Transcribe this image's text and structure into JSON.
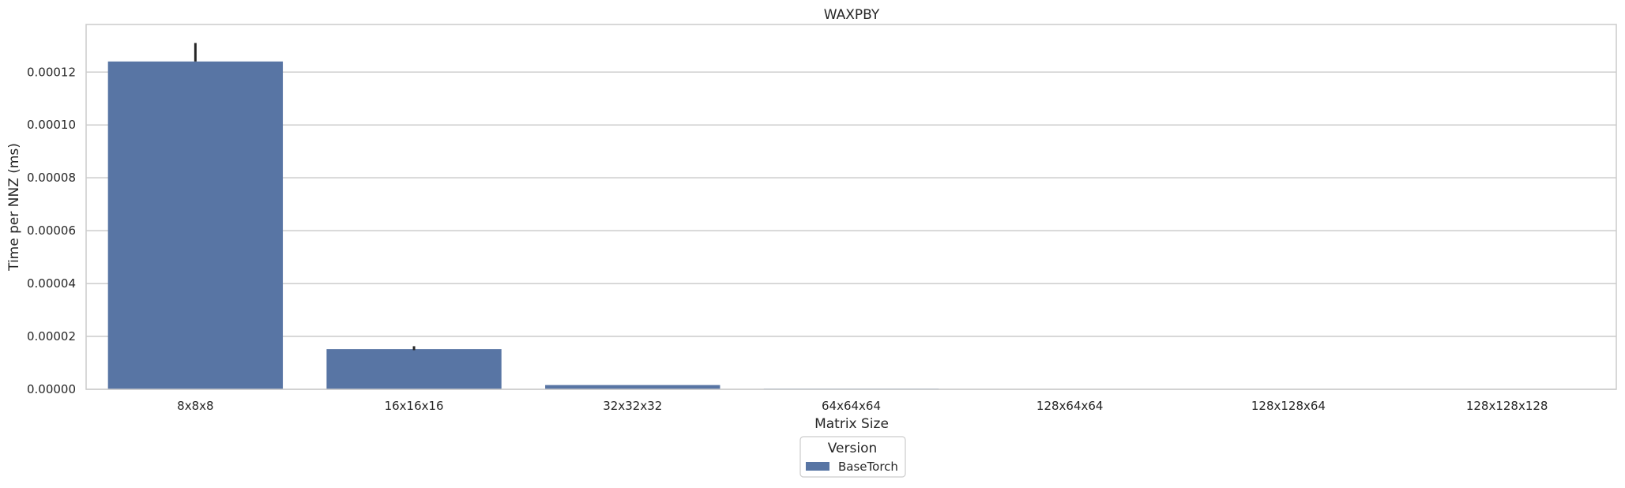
{
  "chart_data": {
    "type": "bar",
    "title": "WAXPBY",
    "xlabel": "Matrix Size",
    "ylabel": "Time per NNZ (ms)",
    "categories": [
      "8x8x8",
      "16x16x16",
      "32x32x32",
      "64x64x64",
      "128x64x64",
      "128x128x64",
      "128x128x128"
    ],
    "series": [
      {
        "name": "BaseTorch",
        "values": [
          0.000124,
          1.52e-05,
          1.6e-06,
          2.5e-07,
          1e-07,
          7e-08,
          5e-08
        ],
        "error_high": [
          0.000131,
          1.63e-05,
          null,
          null,
          null,
          null,
          null
        ],
        "error_low": [
          0.000124,
          1.48e-05,
          null,
          null,
          null,
          null,
          null
        ]
      }
    ],
    "ylim": [
      0,
      0.000138
    ],
    "yticks": [
      "0.00000",
      "0.00002",
      "0.00004",
      "0.00006",
      "0.00008",
      "0.00010",
      "0.00012"
    ],
    "ytick_values": [
      0,
      2e-05,
      4e-05,
      6e-05,
      8e-05,
      0.0001,
      0.00012
    ],
    "grid": true,
    "legend": {
      "title": "Version",
      "placement": "bottom-center",
      "entries": [
        "BaseTorch"
      ]
    },
    "colors": {
      "bar": "#5875a4",
      "grid": "#cccccc",
      "frame": "#cccccc",
      "errorbar": "#262626"
    }
  }
}
